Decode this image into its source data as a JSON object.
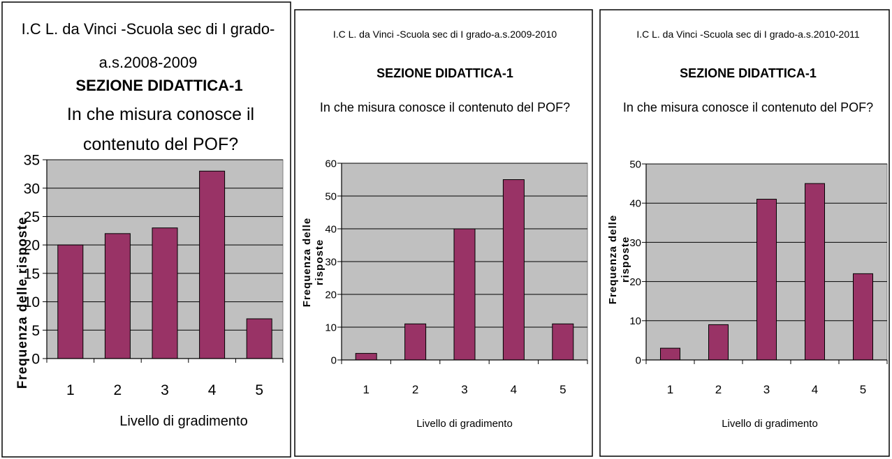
{
  "bar_color": "#993366",
  "plot_bg_color": "#c0c0c0",
  "chart_data": [
    {
      "type": "bar",
      "title_lines": [
        "I.C L. da Vinci -Scuola sec di I grado-",
        "a.s.2008-2009"
      ],
      "section": "SEZIONE DIDATTICA-1",
      "question_lines": [
        "In che misura conosce il",
        "contenuto del POF?"
      ],
      "categories": [
        "1",
        "2",
        "3",
        "4",
        "5"
      ],
      "values": [
        20,
        22,
        23,
        33,
        7
      ],
      "ylim": [
        0,
        35
      ],
      "yticks": [
        0,
        5,
        10,
        15,
        20,
        25,
        30,
        35
      ],
      "ylabel_lines": [
        "Frequenza delle risposte"
      ],
      "xlabel": "Livello di gradimento",
      "grid": true,
      "legend": "none"
    },
    {
      "type": "bar",
      "title_lines": [
        "I.C L. da Vinci -Scuola sec di I grado-a.s.2009-2010"
      ],
      "section": "SEZIONE DIDATTICA-1",
      "question_lines": [
        "In che misura conosce il contenuto del POF?"
      ],
      "categories": [
        "1",
        "2",
        "3",
        "4",
        "5"
      ],
      "values": [
        2,
        11,
        40,
        55,
        11
      ],
      "ylim": [
        0,
        60
      ],
      "yticks": [
        0,
        10,
        20,
        30,
        40,
        50,
        60
      ],
      "ylabel_lines": [
        "Frequenza delle",
        "risposte"
      ],
      "xlabel": "Livello di gradimento",
      "grid": true,
      "legend": "none"
    },
    {
      "type": "bar",
      "title_lines": [
        "I.C L. da Vinci -Scuola sec di I grado-a.s.2010-2011"
      ],
      "section": "SEZIONE DIDATTICA-1",
      "question_lines": [
        "In che misura conosce il contenuto del POF?"
      ],
      "categories": [
        "1",
        "2",
        "3",
        "4",
        "5"
      ],
      "values": [
        3,
        9,
        41,
        45,
        22
      ],
      "ylim": [
        0,
        50
      ],
      "yticks": [
        0,
        10,
        20,
        30,
        40,
        50
      ],
      "ylabel_lines": [
        "Frequenza delle",
        "risposte"
      ],
      "xlabel": "Livello di gradimento",
      "grid": true,
      "legend": "none"
    }
  ]
}
